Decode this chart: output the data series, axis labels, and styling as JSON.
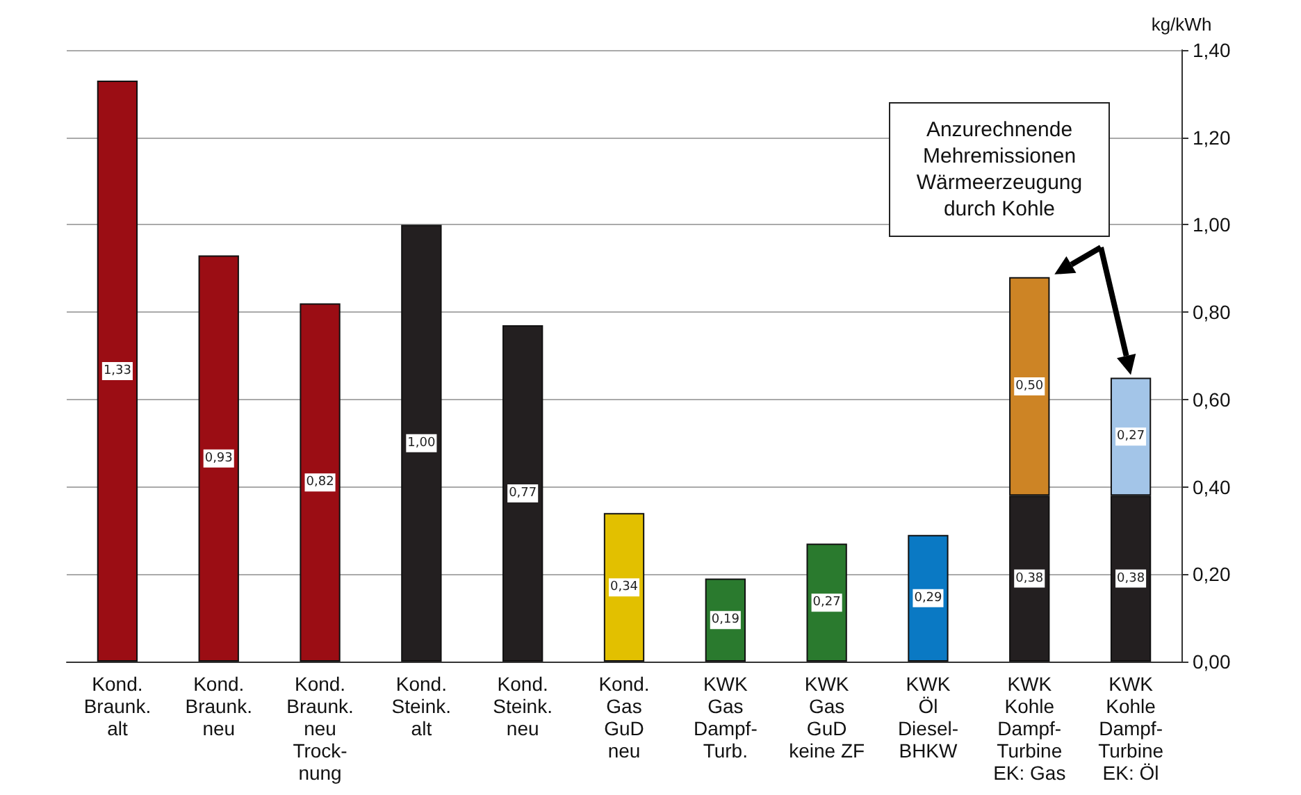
{
  "chart_data": {
    "type": "bar",
    "stacked": true,
    "ylabel": "kg/kWh",
    "categories": [
      "Kond.\nBraunk.\nalt",
      "Kond.\nBraunk.\nneu",
      "Kond.\nBraunk.\nneu\nTrock-\nnung",
      "Kond.\nSteink.\nalt",
      "Kond.\nSteink.\nneu",
      "Kond.\nGas\nGuD\nneu",
      "KWK\nGas\nDampf-\nTurb.",
      "KWK\nGas\nGuD\nkeine ZF",
      "KWK\nÖl\nDiesel-\nBHKW",
      "KWK\nKohle\nDampf-\nTurbine\nEK: Gas",
      "KWK\nKohle\nDampf-\nTurbine\nEK: Öl"
    ],
    "series": [
      {
        "values": [
          1.33,
          0.93,
          0.82,
          1.0,
          0.77,
          0.34,
          0.19,
          0.27,
          0.29,
          0.38,
          0.38
        ],
        "colors": [
          "#9b0d14",
          "#9b0d14",
          "#9b0d14",
          "#231f20",
          "#231f20",
          "#e2c000",
          "#2a7a2e",
          "#2a7a2e",
          "#0a79c4",
          "#231f20",
          "#231f20"
        ],
        "value_labels": [
          "1,33",
          "0,93",
          "0,82",
          "1,00",
          "0,77",
          "0,34",
          "0,19",
          "0,27",
          "0,29",
          "0,38",
          "0,38"
        ]
      },
      {
        "values": [
          null,
          null,
          null,
          null,
          null,
          null,
          null,
          null,
          null,
          0.5,
          0.27
        ],
        "colors": [
          null,
          null,
          null,
          null,
          null,
          null,
          null,
          null,
          null,
          "#cd8425",
          "#a3c5e8"
        ],
        "value_labels": [
          null,
          null,
          null,
          null,
          null,
          null,
          null,
          null,
          null,
          "0,50",
          "0,27"
        ]
      }
    ],
    "ylim": [
      0,
      1.4
    ],
    "yticks": [
      {
        "value": 0,
        "label": "0,00"
      },
      {
        "value": 0.2,
        "label": "0,20"
      },
      {
        "value": 0.4,
        "label": "0,40"
      },
      {
        "value": 0.6,
        "label": "0,60"
      },
      {
        "value": 0.8,
        "label": "0,80"
      },
      {
        "value": 1.0,
        "label": "1,00"
      },
      {
        "value": 1.2,
        "label": "1,20"
      },
      {
        "value": 1.4,
        "label": "1,40"
      }
    ],
    "grid": "y",
    "annotations": [
      "Anzurechnende\nMehremissionen\nWärmeerzeugung\ndurch Kohle"
    ]
  }
}
